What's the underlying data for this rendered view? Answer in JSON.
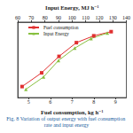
{
  "chart_data": {
    "type": "line",
    "caption": "Fig. 8 Variation of output energy with fuel consumption rate and input energy",
    "xlabel": "Fuel consumption, kg h⁻¹",
    "x2label": "Input Energy, MJ h⁻¹",
    "xlim": [
      4.5,
      9.5
    ],
    "xticks": [
      5,
      6,
      7,
      8,
      9
    ],
    "x2lim": [
      60,
      140
    ],
    "x2ticks": [
      60,
      70,
      80,
      90,
      100,
      110,
      120,
      130,
      140
    ],
    "ylim": [
      30,
      85
    ],
    "grid": false,
    "legend": "upper left",
    "tick_labels": "x",
    "series": [
      {
        "name": "Fuel consumption",
        "color": "#e03030",
        "marker": "square",
        "axis": "x",
        "x": [
          4.7,
          5.6,
          6.4,
          7.2,
          8.0,
          8.8
        ],
        "values": [
          38,
          48,
          60,
          70,
          75,
          78
        ]
      },
      {
        "name": "Input Energy",
        "color": "#88c040",
        "marker": "triangle",
        "axis": "x2",
        "x": [
          66,
          79,
          90,
          102,
          114,
          126
        ],
        "values": [
          36,
          45,
          57,
          66,
          73,
          77
        ]
      }
    ]
  }
}
